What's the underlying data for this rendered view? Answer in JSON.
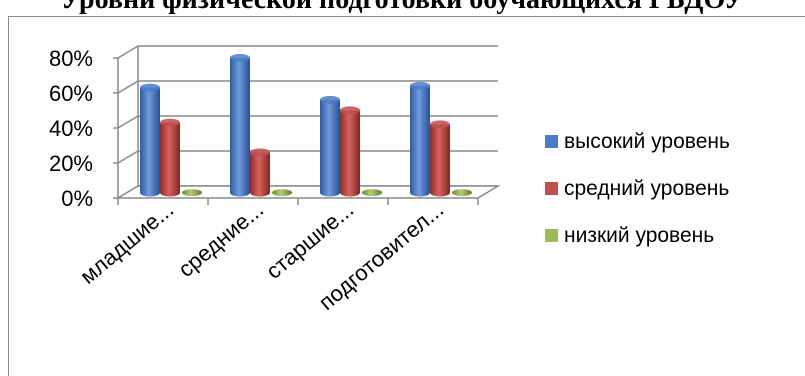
{
  "title": "Уровни физической подготовки обучающихся ГБДОУ",
  "chart_data": {
    "type": "bar",
    "categories": [
      "младшие...",
      "средние...",
      "старшие...",
      "подготовител..."
    ],
    "series": [
      {
        "name": "высокий уровень",
        "values": [
          60,
          77,
          53,
          61
        ],
        "color": "#4a7cc9"
      },
      {
        "name": "средний уровень",
        "values": [
          40,
          23,
          47,
          39
        ],
        "color": "#c0504d"
      },
      {
        "name": "низкий уровень",
        "values": [
          0,
          0,
          0,
          0
        ],
        "color": "#9bbb59"
      }
    ],
    "yticks": [
      "0%",
      "20%",
      "40%",
      "60%",
      "80%"
    ],
    "ylim": [
      0,
      80
    ],
    "legend_position": "right",
    "grid": true
  }
}
